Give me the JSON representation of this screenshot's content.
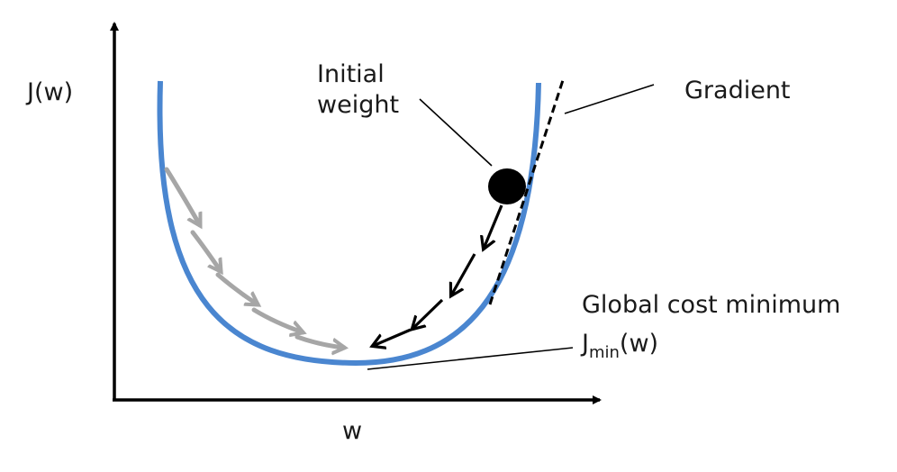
{
  "axes": {
    "y_label": "J(w)",
    "x_label": "w"
  },
  "annotations": {
    "initial_weight_line1": "Initial",
    "initial_weight_line2": "weight",
    "gradient": "Gradient",
    "global_min": "Global cost minimum",
    "jmin_main": "J",
    "jmin_sub": "min",
    "jmin_tail": "(w)"
  },
  "colors": {
    "curve": "#4a86d0",
    "axis": "#000000",
    "descent_steps": "#000000",
    "faded_steps": "#a6a6a6",
    "weight_point": "#000000",
    "tangent": "#000000"
  }
}
